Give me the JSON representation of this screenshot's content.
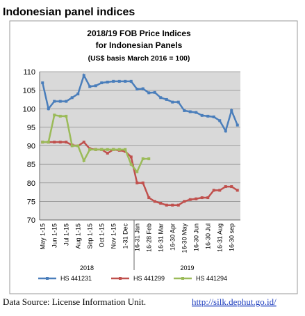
{
  "heading": "Indonesian panel indices",
  "source": {
    "text": "Data Source: License Information Unit.",
    "link": "http://silk.dephut.go.id/"
  },
  "chart_data": {
    "type": "line",
    "title": [
      "2018/19 FOB Price Indices",
      "for Indonesian Panels",
      "(US$ basis March 2016 = 100)"
    ],
    "categories": [
      "May 1-15",
      null,
      "Jun 1-15",
      null,
      "Jul 1-15",
      null,
      "Aug 1-15",
      null,
      "Sep 1-15",
      null,
      "Oct 1-15",
      null,
      "Nov 1-15",
      null,
      "1-31 Dec",
      null,
      "16-31 Jan",
      null,
      "16-28 Feb",
      null,
      "16-31 Mar",
      null,
      "16-30 Apr",
      null,
      "16-30 May",
      null,
      "16-30 Jun",
      null,
      "16-30 Jul",
      null,
      "16-31 Aug",
      null,
      "16-30 sep",
      null
    ],
    "x_groups": [
      "2018",
      "2019"
    ],
    "series": [
      {
        "name": "HS 441231",
        "color": "#4a7ebb",
        "values": [
          107,
          100,
          102,
          102,
          102,
          103,
          104,
          109,
          106,
          106.2,
          107,
          107.2,
          107.4,
          107.4,
          107.4,
          107.4,
          105.3,
          105.4,
          104.3,
          104.4,
          103,
          102.5,
          101.8,
          101.8,
          99.5,
          99.2,
          99,
          98.2,
          98,
          97.8,
          96.8,
          94,
          99.5,
          95.6
        ]
      },
      {
        "name": "HS 441299",
        "color": "#c0504d",
        "values": [
          91,
          91,
          91,
          91,
          91,
          90.2,
          90,
          91,
          89.2,
          89,
          89,
          88,
          89,
          88.8,
          88.5,
          87,
          80,
          80,
          76,
          75,
          74.5,
          74,
          74,
          74,
          75,
          75.5,
          75.7,
          76,
          76,
          78,
          78,
          79,
          79,
          78
        ]
      },
      {
        "name": "HS 441294",
        "color": "#9bbb59",
        "values": [
          91,
          91,
          98.3,
          98,
          98,
          90,
          90,
          86,
          89,
          89,
          89,
          89,
          89,
          89,
          89,
          85,
          83,
          86.5,
          86.5,
          null,
          null,
          null,
          null,
          null,
          null,
          null,
          null,
          null,
          null,
          null,
          null,
          null,
          null,
          null
        ]
      }
    ],
    "ylim": [
      70,
      110
    ],
    "yticks": [
      70,
      75,
      80,
      85,
      90,
      95,
      100,
      105,
      110
    ],
    "grid": true,
    "legend": "bottom"
  }
}
